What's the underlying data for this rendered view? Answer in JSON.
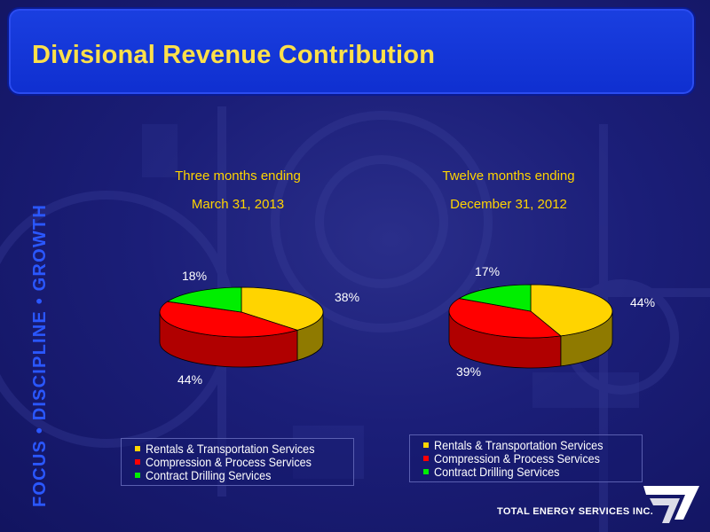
{
  "slide": {
    "title": "Divisional Revenue Contribution",
    "tagline": "FOCUS • DISCIPLINE • GROWTH",
    "company": "TOTAL ENERGY SERVICES INC."
  },
  "colors": {
    "rentals": "#ffd400",
    "compression": "#ff0000",
    "drilling": "#00ee00",
    "title_text": "#ffe04a",
    "title_bar": "#1a3fe0",
    "tagline": "#2a57ff"
  },
  "chart_data": [
    {
      "type": "pie",
      "title_line1": "Three months ending",
      "title_line2": "March 31, 2013",
      "slices": [
        {
          "label": "Rentals & Transportation Services",
          "value": 38,
          "display": "38%"
        },
        {
          "label": "Compression & Process Services",
          "value": 44,
          "display": "44%"
        },
        {
          "label": "Contract Drilling Services",
          "value": 18,
          "display": "18%"
        }
      ],
      "legend": [
        "Rentals & Transportation Services",
        "Compression & Process Services",
        "Contract Drilling Services"
      ]
    },
    {
      "type": "pie",
      "title_line1": "Twelve months ending",
      "title_line2": "December 31, 2012",
      "slices": [
        {
          "label": "Rentals & Transportation Services",
          "value": 44,
          "display": "44%"
        },
        {
          "label": "Compression & Process Services",
          "value": 39,
          "display": "39%"
        },
        {
          "label": "Contract Drilling Services",
          "value": 17,
          "display": "17%"
        }
      ],
      "legend": [
        "Rentals & Transportation Services",
        "Compression & Process Services",
        "Contract Drilling Services"
      ]
    }
  ]
}
